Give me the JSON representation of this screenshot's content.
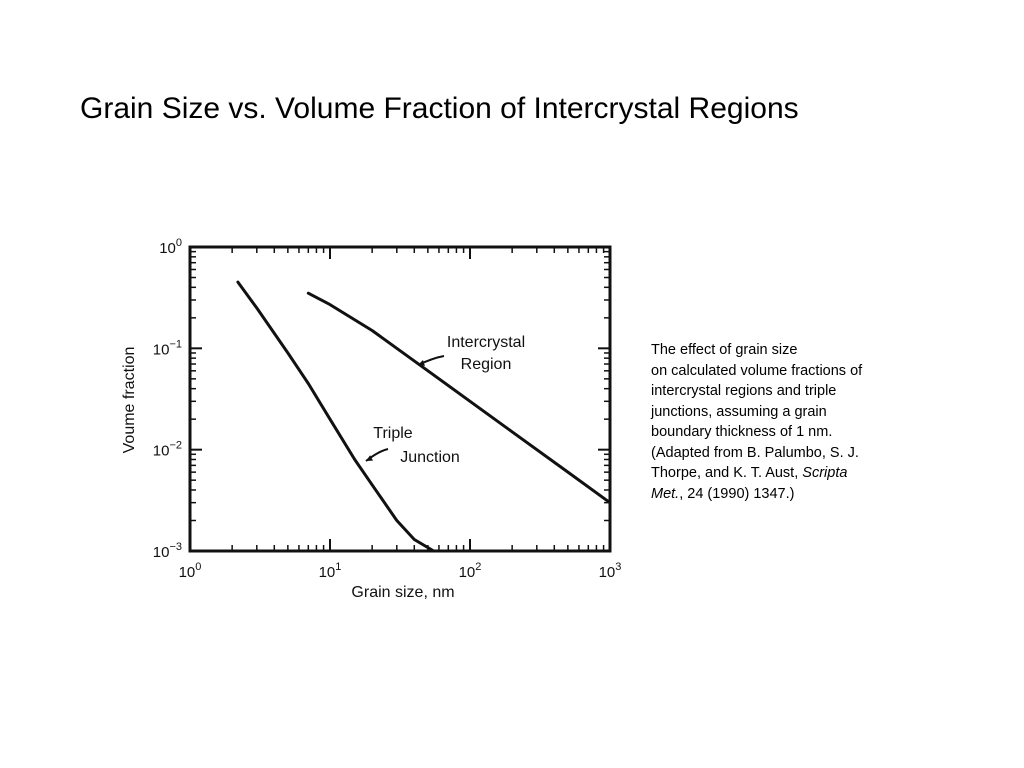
{
  "slide": {
    "title": "Grain Size vs. Volume Fraction of Intercrystal Regions"
  },
  "caption": {
    "line1": "The effect of grain size",
    "line2": "on calculated volume fractions of",
    "line3": "intercrystal regions and triple",
    "line4": "junctions, assuming a grain",
    "line5": "boundary thickness  of 1 nm.",
    "line6": "(Adapted from B. Palumbo, S. J.",
    "line7_prefix": "Thorpe, and K. T. Aust, ",
    "journal_part1": "Scripta",
    "journal_part2": "Met.",
    "line8_suffix": ", 24 (1990) 1347.)"
  },
  "chart_data": {
    "type": "line",
    "xlabel": "Grain size, nm",
    "ylabel": "Voume fraction",
    "x_scale": "log",
    "y_scale": "log",
    "xlim": [
      1,
      1000
    ],
    "ylim": [
      0.001,
      1
    ],
    "x_ticks": [
      {
        "value": 1,
        "base": "10",
        "exp": "0"
      },
      {
        "value": 10,
        "base": "10",
        "exp": "1"
      },
      {
        "value": 100,
        "base": "10",
        "exp": "2"
      },
      {
        "value": 1000,
        "base": "10",
        "exp": "3"
      }
    ],
    "y_ticks": [
      {
        "value": 1,
        "base": "10",
        "exp": "0"
      },
      {
        "value": 0.1,
        "base": "10",
        "exp": "−1"
      },
      {
        "value": 0.01,
        "base": "10",
        "exp": "−2"
      },
      {
        "value": 0.001,
        "base": "10",
        "exp": "−3"
      }
    ],
    "grid": false,
    "series": [
      {
        "name": "Intercrystal Region",
        "x": [
          7,
          10,
          20,
          50,
          100,
          200,
          500,
          1000
        ],
        "y": [
          0.35,
          0.27,
          0.15,
          0.06,
          0.03,
          0.015,
          0.006,
          0.003
        ]
      },
      {
        "name": "Triple Junction",
        "x": [
          2.2,
          3,
          5,
          7,
          10,
          15,
          20,
          30,
          40,
          55
        ],
        "y": [
          0.45,
          0.25,
          0.09,
          0.045,
          0.02,
          0.008,
          0.0045,
          0.002,
          0.0013,
          0.001
        ]
      }
    ],
    "annotations": [
      {
        "series": "Intercrystal Region",
        "line1": "Intercrystal",
        "line2": "Region"
      },
      {
        "series": "Triple Junction",
        "line1": "Triple",
        "line2": "Junction"
      }
    ]
  }
}
